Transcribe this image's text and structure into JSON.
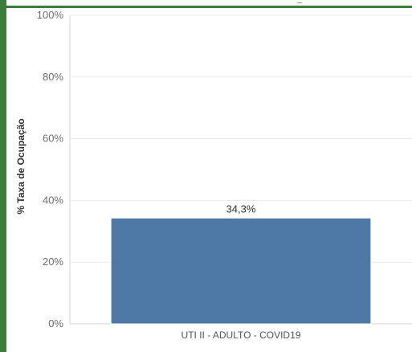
{
  "chart_data": {
    "type": "bar",
    "categories": [
      "UTI II - ADULTO - COVID19"
    ],
    "values": [
      34.3
    ],
    "data_labels": [
      "34,3%"
    ],
    "ylabel": "% Taxa de Ocupação",
    "xlabel": "",
    "ylim": [
      0,
      100
    ],
    "yticks": [
      0,
      20,
      40,
      60,
      80,
      100
    ],
    "ytick_labels": [
      "0%",
      "20%",
      "40%",
      "60%",
      "80%",
      "100%"
    ],
    "grid": true,
    "bar_color": "#4e79a7",
    "frame_color": "#3b7d3b"
  }
}
